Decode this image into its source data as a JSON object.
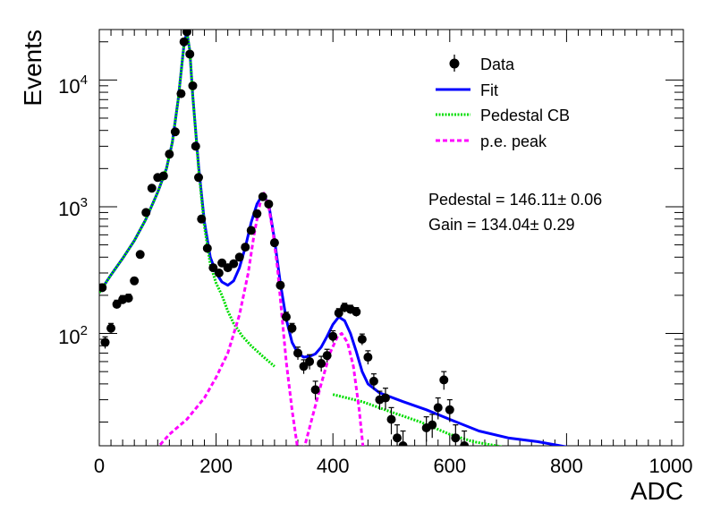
{
  "chart_data": {
    "type": "scatter",
    "xlabel": "ADC",
    "ylabel": "Events",
    "xlim": [
      0,
      1000
    ],
    "ylim": [
      13,
      25000
    ],
    "y_scale": "log",
    "grid": false,
    "legend_position": "top-right",
    "x_ticks": [
      {
        "value": 0,
        "label": "0"
      },
      {
        "value": 200,
        "label": "200"
      },
      {
        "value": 400,
        "label": "400"
      },
      {
        "value": 600,
        "label": "600"
      },
      {
        "value": 800,
        "label": "800"
      },
      {
        "value": 1000,
        "label": "1000"
      }
    ],
    "y_ticks": [
      {
        "value": 100,
        "base": "10",
        "exp": "2"
      },
      {
        "value": 1000,
        "base": "10",
        "exp": "3"
      },
      {
        "value": 10000,
        "base": "10",
        "exp": "4"
      }
    ],
    "legend": [
      {
        "label": "Data",
        "style": "marker",
        "color": "#000000"
      },
      {
        "label": "Fit",
        "style": "solid",
        "color": "#0000ff"
      },
      {
        "label": "Pedestal CB",
        "style": "dotted",
        "color": "#00dd00"
      },
      {
        "label": "p.e. peak",
        "style": "dashed",
        "color": "#ff00ff"
      }
    ],
    "annotations": [
      {
        "text": "Pedestal = 146.11± 0.06"
      },
      {
        "text": "Gain = 134.04± 0.29"
      }
    ],
    "series": [
      {
        "name": "Data",
        "style": "points",
        "color": "#000000",
        "points": [
          {
            "x": 5,
            "y": 230,
            "err": 15
          },
          {
            "x": 10,
            "y": 85,
            "err": 9
          },
          {
            "x": 20,
            "y": 110,
            "err": 10
          },
          {
            "x": 30,
            "y": 170,
            "err": 13
          },
          {
            "x": 40,
            "y": 185,
            "err": 14
          },
          {
            "x": 50,
            "y": 190,
            "err": 14
          },
          {
            "x": 60,
            "y": 260,
            "err": 16
          },
          {
            "x": 70,
            "y": 420,
            "err": 20
          },
          {
            "x": 80,
            "y": 900,
            "err": 30
          },
          {
            "x": 90,
            "y": 1400,
            "err": 37
          },
          {
            "x": 100,
            "y": 1700,
            "err": 41
          },
          {
            "x": 110,
            "y": 1750,
            "err": 42
          },
          {
            "x": 120,
            "y": 2600,
            "err": 51
          },
          {
            "x": 130,
            "y": 3900,
            "err": 62
          },
          {
            "x": 140,
            "y": 7800,
            "err": 88
          },
          {
            "x": 145,
            "y": 20000,
            "err": 140
          },
          {
            "x": 150,
            "y": 24000,
            "err": 155
          },
          {
            "x": 155,
            "y": 16000,
            "err": 126
          },
          {
            "x": 160,
            "y": 9000,
            "err": 95
          },
          {
            "x": 165,
            "y": 3000,
            "err": 55
          },
          {
            "x": 170,
            "y": 1700,
            "err": 41
          },
          {
            "x": 175,
            "y": 800,
            "err": 28
          },
          {
            "x": 185,
            "y": 470,
            "err": 22
          },
          {
            "x": 195,
            "y": 330,
            "err": 18
          },
          {
            "x": 205,
            "y": 300,
            "err": 17
          },
          {
            "x": 210,
            "y": 360,
            "err": 19
          },
          {
            "x": 220,
            "y": 330,
            "err": 18
          },
          {
            "x": 230,
            "y": 355,
            "err": 19
          },
          {
            "x": 240,
            "y": 400,
            "err": 20
          },
          {
            "x": 250,
            "y": 480,
            "err": 22
          },
          {
            "x": 260,
            "y": 650,
            "err": 25
          },
          {
            "x": 270,
            "y": 880,
            "err": 30
          },
          {
            "x": 280,
            "y": 1200,
            "err": 35
          },
          {
            "x": 290,
            "y": 1050,
            "err": 32
          },
          {
            "x": 300,
            "y": 520,
            "err": 23
          },
          {
            "x": 310,
            "y": 240,
            "err": 15
          },
          {
            "x": 320,
            "y": 135,
            "err": 12
          },
          {
            "x": 330,
            "y": 110,
            "err": 10
          },
          {
            "x": 340,
            "y": 70,
            "err": 8
          },
          {
            "x": 350,
            "y": 55,
            "err": 7
          },
          {
            "x": 360,
            "y": 60,
            "err": 8
          },
          {
            "x": 370,
            "y": 36,
            "err": 6
          },
          {
            "x": 380,
            "y": 58,
            "err": 8
          },
          {
            "x": 390,
            "y": 67,
            "err": 8
          },
          {
            "x": 400,
            "y": 95,
            "err": 10
          },
          {
            "x": 410,
            "y": 145,
            "err": 12
          },
          {
            "x": 420,
            "y": 160,
            "err": 13
          },
          {
            "x": 430,
            "y": 155,
            "err": 12
          },
          {
            "x": 440,
            "y": 148,
            "err": 12
          },
          {
            "x": 450,
            "y": 90,
            "err": 9
          },
          {
            "x": 460,
            "y": 65,
            "err": 8
          },
          {
            "x": 470,
            "y": 42,
            "err": 6
          },
          {
            "x": 480,
            "y": 30,
            "err": 5
          },
          {
            "x": 490,
            "y": 31,
            "err": 6
          },
          {
            "x": 500,
            "y": 21,
            "err": 5
          },
          {
            "x": 510,
            "y": 15,
            "err": 4
          },
          {
            "x": 520,
            "y": 13,
            "err": 4
          },
          {
            "x": 560,
            "y": 18,
            "err": 4
          },
          {
            "x": 570,
            "y": 19,
            "err": 4
          },
          {
            "x": 580,
            "y": 26,
            "err": 5
          },
          {
            "x": 590,
            "y": 43,
            "err": 7
          },
          {
            "x": 600,
            "y": 25,
            "err": 5
          },
          {
            "x": 610,
            "y": 15,
            "err": 4
          },
          {
            "x": 625,
            "y": 13,
            "err": 4
          }
        ]
      },
      {
        "name": "Fit",
        "style": "solid",
        "color": "#0000ff",
        "points": [
          {
            "x": 0,
            "y": 210
          },
          {
            "x": 20,
            "y": 290
          },
          {
            "x": 40,
            "y": 390
          },
          {
            "x": 60,
            "y": 540
          },
          {
            "x": 80,
            "y": 800
          },
          {
            "x": 100,
            "y": 1300
          },
          {
            "x": 115,
            "y": 2000
          },
          {
            "x": 125,
            "y": 3200
          },
          {
            "x": 135,
            "y": 7000
          },
          {
            "x": 145,
            "y": 19000
          },
          {
            "x": 150,
            "y": 24000
          },
          {
            "x": 155,
            "y": 17000
          },
          {
            "x": 160,
            "y": 7500
          },
          {
            "x": 170,
            "y": 2100
          },
          {
            "x": 180,
            "y": 760
          },
          {
            "x": 190,
            "y": 400
          },
          {
            "x": 200,
            "y": 300
          },
          {
            "x": 210,
            "y": 255
          },
          {
            "x": 220,
            "y": 240
          },
          {
            "x": 230,
            "y": 260
          },
          {
            "x": 240,
            "y": 330
          },
          {
            "x": 250,
            "y": 480
          },
          {
            "x": 260,
            "y": 750
          },
          {
            "x": 270,
            "y": 1050
          },
          {
            "x": 280,
            "y": 1250
          },
          {
            "x": 290,
            "y": 1050
          },
          {
            "x": 300,
            "y": 550
          },
          {
            "x": 310,
            "y": 250
          },
          {
            "x": 320,
            "y": 130
          },
          {
            "x": 330,
            "y": 85
          },
          {
            "x": 340,
            "y": 70
          },
          {
            "x": 350,
            "y": 65
          },
          {
            "x": 360,
            "y": 66
          },
          {
            "x": 370,
            "y": 69
          },
          {
            "x": 380,
            "y": 78
          },
          {
            "x": 390,
            "y": 95
          },
          {
            "x": 400,
            "y": 118
          },
          {
            "x": 410,
            "y": 135
          },
          {
            "x": 420,
            "y": 126
          },
          {
            "x": 430,
            "y": 100
          },
          {
            "x": 440,
            "y": 72
          },
          {
            "x": 450,
            "y": 50
          },
          {
            "x": 460,
            "y": 40
          },
          {
            "x": 480,
            "y": 34
          },
          {
            "x": 520,
            "y": 29
          },
          {
            "x": 560,
            "y": 25
          },
          {
            "x": 600,
            "y": 21
          },
          {
            "x": 650,
            "y": 17
          },
          {
            "x": 700,
            "y": 15
          },
          {
            "x": 750,
            "y": 14
          },
          {
            "x": 810,
            "y": 12.5
          }
        ]
      },
      {
        "name": "Pedestal CB",
        "style": "dotted",
        "color": "#00dd00",
        "points": [
          {
            "x": 0,
            "y": 210
          },
          {
            "x": 20,
            "y": 290
          },
          {
            "x": 40,
            "y": 390
          },
          {
            "x": 60,
            "y": 540
          },
          {
            "x": 80,
            "y": 800
          },
          {
            "x": 100,
            "y": 1300
          },
          {
            "x": 115,
            "y": 2000
          },
          {
            "x": 125,
            "y": 3200
          },
          {
            "x": 135,
            "y": 7000
          },
          {
            "x": 145,
            "y": 19000
          },
          {
            "x": 150,
            "y": 24000
          },
          {
            "x": 155,
            "y": 17000
          },
          {
            "x": 160,
            "y": 7500
          },
          {
            "x": 170,
            "y": 2000
          },
          {
            "x": 180,
            "y": 700
          },
          {
            "x": 190,
            "y": 350
          },
          {
            "x": 200,
            "y": 250
          },
          {
            "x": 210,
            "y": 200
          },
          {
            "x": 220,
            "y": 150
          },
          {
            "x": 230,
            "y": 120
          },
          {
            "x": 245,
            "y": 95
          },
          {
            "x": 260,
            "y": 80
          },
          {
            "x": 280,
            "y": 66
          },
          {
            "x": 300,
            "y": 55
          }
        ]
      },
      {
        "name": "Pedestal CB tail",
        "style": "dotted",
        "color": "#00dd00",
        "points": [
          {
            "x": 400,
            "y": 33
          },
          {
            "x": 450,
            "y": 29
          },
          {
            "x": 500,
            "y": 24
          },
          {
            "x": 550,
            "y": 20
          },
          {
            "x": 600,
            "y": 16
          },
          {
            "x": 640,
            "y": 14
          },
          {
            "x": 700,
            "y": 12.5
          }
        ]
      },
      {
        "name": "p.e. peak",
        "style": "dashed",
        "color": "#ff00ff",
        "points": [
          {
            "x": 96,
            "y": 12
          },
          {
            "x": 120,
            "y": 16
          },
          {
            "x": 150,
            "y": 21
          },
          {
            "x": 180,
            "y": 31
          },
          {
            "x": 200,
            "y": 45
          },
          {
            "x": 220,
            "y": 70
          },
          {
            "x": 240,
            "y": 140
          },
          {
            "x": 255,
            "y": 300
          },
          {
            "x": 265,
            "y": 600
          },
          {
            "x": 275,
            "y": 1050
          },
          {
            "x": 282,
            "y": 1280
          },
          {
            "x": 290,
            "y": 1000
          },
          {
            "x": 298,
            "y": 600
          },
          {
            "x": 305,
            "y": 330
          },
          {
            "x": 312,
            "y": 150
          },
          {
            "x": 320,
            "y": 60
          },
          {
            "x": 330,
            "y": 25
          },
          {
            "x": 340,
            "y": 12
          }
        ]
      },
      {
        "name": "p.e. peak 2",
        "style": "dashed",
        "color": "#ff00ff",
        "points": [
          {
            "x": 350,
            "y": 12
          },
          {
            "x": 365,
            "y": 22
          },
          {
            "x": 380,
            "y": 40
          },
          {
            "x": 395,
            "y": 70
          },
          {
            "x": 408,
            "y": 95
          },
          {
            "x": 415,
            "y": 100
          },
          {
            "x": 425,
            "y": 85
          },
          {
            "x": 435,
            "y": 55
          },
          {
            "x": 445,
            "y": 25
          },
          {
            "x": 452,
            "y": 12
          }
        ]
      }
    ]
  }
}
